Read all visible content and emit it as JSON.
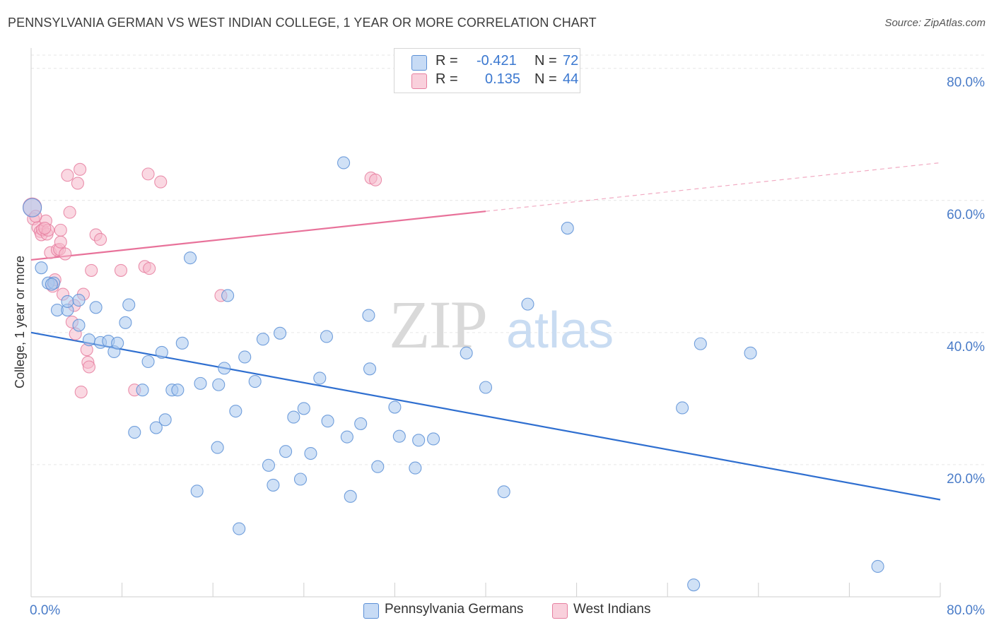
{
  "title": "PENNSYLVANIA GERMAN VS WEST INDIAN COLLEGE, 1 YEAR OR MORE CORRELATION CHART",
  "source": "Source: ZipAtlas.com",
  "watermark": {
    "zip": "ZIP",
    "atlas": "atlas"
  },
  "legend": {
    "rows": [
      {
        "r_label": "R =",
        "r_value": "-0.421",
        "n_label": "N =",
        "n_value": "72",
        "color": "#aac8ef"
      },
      {
        "r_label": "R =",
        "r_value": "0.135",
        "n_label": "N =",
        "n_value": "44",
        "color": "#f5b8cb"
      }
    ]
  },
  "chart_data": {
    "type": "scatter",
    "title": "PENNSYLVANIA GERMAN VS WEST INDIAN COLLEGE, 1 YEAR OR MORE CORRELATION CHART",
    "xlabel": "",
    "ylabel": "College, 1 year or more",
    "xlim": [
      0,
      80
    ],
    "ylim": [
      0,
      82
    ],
    "x_tick_labels": [
      "0.0%",
      "80.0%"
    ],
    "y_ticks": [
      {
        "value": 20,
        "label": "20.0%"
      },
      {
        "value": 40,
        "label": "40.0%"
      },
      {
        "value": 60,
        "label": "60.0%"
      },
      {
        "value": 80,
        "label": "80.0%"
      }
    ],
    "grid": true,
    "legend_position": "bottom",
    "series": [
      {
        "name": "Pennsylvania Germans",
        "color": "#aac8ef",
        "edge_color": "#5b8fd6",
        "line_color": "#2f6fd0",
        "trend": {
          "x0": 0,
          "y0": 40.0,
          "x1": 80,
          "y1": 14.7,
          "dashed_from": null
        },
        "points": [
          [
            0.1,
            58.9
          ],
          [
            0.9,
            49.8
          ],
          [
            1.5,
            47.5
          ],
          [
            2.0,
            47.5
          ],
          [
            2.3,
            43.4
          ],
          [
            3.2,
            43.4
          ],
          [
            3.2,
            44.7
          ],
          [
            4.2,
            44.9
          ],
          [
            4.2,
            41.1
          ],
          [
            5.1,
            38.9
          ],
          [
            5.7,
            43.8
          ],
          [
            6.1,
            38.5
          ],
          [
            6.8,
            38.7
          ],
          [
            7.3,
            37.1
          ],
          [
            7.6,
            38.4
          ],
          [
            8.3,
            41.5
          ],
          [
            8.6,
            44.2
          ],
          [
            9.1,
            24.9
          ],
          [
            9.8,
            31.3
          ],
          [
            10.3,
            35.6
          ],
          [
            11.0,
            25.6
          ],
          [
            11.5,
            37.0
          ],
          [
            11.8,
            26.8
          ],
          [
            12.4,
            31.3
          ],
          [
            12.9,
            31.3
          ],
          [
            13.3,
            38.4
          ],
          [
            14.0,
            51.3
          ],
          [
            14.6,
            16.0
          ],
          [
            14.9,
            32.3
          ],
          [
            16.4,
            22.6
          ],
          [
            16.5,
            32.1
          ],
          [
            17.0,
            34.6
          ],
          [
            17.3,
            45.6
          ],
          [
            18.0,
            28.1
          ],
          [
            18.3,
            10.3
          ],
          [
            18.8,
            36.3
          ],
          [
            19.7,
            32.6
          ],
          [
            20.4,
            39.0
          ],
          [
            20.9,
            19.9
          ],
          [
            21.3,
            16.9
          ],
          [
            21.9,
            39.9
          ],
          [
            22.4,
            22.0
          ],
          [
            23.1,
            27.2
          ],
          [
            23.7,
            17.8
          ],
          [
            24.0,
            28.5
          ],
          [
            24.6,
            21.7
          ],
          [
            25.4,
            33.1
          ],
          [
            26.0,
            39.4
          ],
          [
            26.1,
            26.6
          ],
          [
            27.5,
            65.7
          ],
          [
            27.8,
            24.2
          ],
          [
            28.1,
            15.2
          ],
          [
            29.0,
            26.2
          ],
          [
            29.7,
            42.6
          ],
          [
            29.8,
            34.5
          ],
          [
            30.5,
            19.7
          ],
          [
            32.0,
            28.7
          ],
          [
            32.4,
            24.3
          ],
          [
            33.8,
            19.5
          ],
          [
            34.1,
            23.7
          ],
          [
            35.4,
            23.9
          ],
          [
            38.3,
            36.9
          ],
          [
            40.0,
            31.7
          ],
          [
            41.6,
            15.9
          ],
          [
            43.7,
            44.3
          ],
          [
            47.2,
            55.8
          ],
          [
            57.3,
            28.6
          ],
          [
            58.3,
            1.8
          ],
          [
            58.9,
            38.3
          ],
          [
            63.3,
            36.9
          ],
          [
            74.5,
            4.6
          ],
          [
            1.8,
            47.3
          ]
        ]
      },
      {
        "name": "West Indians",
        "color": "#f5b8cb",
        "edge_color": "#e67fa0",
        "line_color": "#e8729a",
        "trend": {
          "x0": 0,
          "y0": 51.0,
          "x1": 80,
          "y1": 65.7,
          "dashed_from": 40
        },
        "points": [
          [
            0.1,
            59.0
          ],
          [
            0.2,
            57.2
          ],
          [
            0.6,
            55.9
          ],
          [
            0.8,
            55.3
          ],
          [
            0.9,
            54.8
          ],
          [
            1.0,
            55.6
          ],
          [
            1.3,
            56.9
          ],
          [
            1.4,
            54.9
          ],
          [
            1.5,
            55.5
          ],
          [
            1.7,
            52.1
          ],
          [
            1.9,
            47.0
          ],
          [
            2.1,
            48.0
          ],
          [
            2.3,
            52.5
          ],
          [
            2.5,
            52.6
          ],
          [
            2.6,
            53.7
          ],
          [
            2.8,
            45.8
          ],
          [
            3.0,
            51.9
          ],
          [
            3.2,
            63.8
          ],
          [
            3.4,
            58.2
          ],
          [
            3.6,
            41.6
          ],
          [
            3.9,
            39.8
          ],
          [
            4.1,
            62.6
          ],
          [
            4.3,
            64.7
          ],
          [
            4.4,
            31.0
          ],
          [
            4.6,
            45.8
          ],
          [
            4.9,
            37.4
          ],
          [
            5.0,
            35.5
          ],
          [
            5.1,
            34.8
          ],
          [
            5.3,
            49.4
          ],
          [
            5.7,
            54.8
          ],
          [
            6.1,
            54.1
          ],
          [
            7.9,
            49.4
          ],
          [
            9.1,
            31.3
          ],
          [
            10.0,
            50.0
          ],
          [
            10.3,
            64.0
          ],
          [
            10.4,
            49.7
          ],
          [
            11.4,
            62.8
          ],
          [
            16.7,
            45.6
          ],
          [
            29.9,
            63.4
          ],
          [
            30.3,
            63.1
          ],
          [
            0.4,
            57.6
          ],
          [
            2.6,
            55.5
          ],
          [
            1.2,
            55.8
          ],
          [
            3.8,
            44.1
          ]
        ]
      }
    ]
  }
}
